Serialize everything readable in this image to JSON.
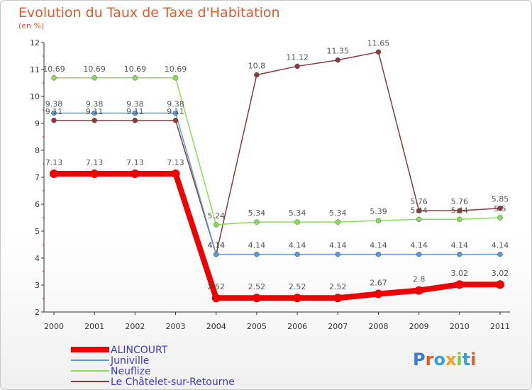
{
  "chart_data": {
    "type": "line",
    "title": "Evolution du Taux de Taxe d'Habitation",
    "subtitle": "(en %)",
    "x": [
      "2000",
      "2001",
      "2002",
      "2003",
      "2004",
      "2005",
      "2006",
      "2007",
      "2008",
      "2009",
      "2010",
      "2011"
    ],
    "ylim": [
      2,
      12
    ],
    "yticks": [
      2,
      3,
      4,
      5,
      6,
      7,
      8,
      9,
      10,
      11,
      12
    ],
    "grid": false,
    "legend_position": "bottom-left",
    "series": [
      {
        "name": "ALINCOURT",
        "color": "#ee0000",
        "values": [
          7.13,
          7.13,
          7.13,
          7.13,
          2.52,
          2.52,
          2.52,
          2.52,
          2.67,
          2.8,
          3.02,
          3.02
        ],
        "labels": [
          "7.13",
          "7.13",
          "7.13",
          "7.13",
          "2.52",
          "2.52",
          "2.52",
          "2.52",
          "2.67",
          "2.8",
          "3.02",
          "3.02"
        ]
      },
      {
        "name": "Juniville",
        "color": "#5b9bd5",
        "values": [
          9.38,
          9.38,
          9.38,
          9.38,
          4.14,
          4.14,
          4.14,
          4.14,
          4.14,
          4.14,
          4.14,
          4.14
        ],
        "labels": [
          "9.38",
          "9.38",
          "9.38",
          "9.38",
          "4.14",
          "4.14",
          "4.14",
          "4.14",
          "4.14",
          "4.14",
          "4.14",
          "4.14"
        ]
      },
      {
        "name": "Neuflize",
        "color": "#88dd55",
        "values": [
          10.69,
          10.69,
          10.69,
          10.69,
          5.24,
          5.34,
          5.34,
          5.34,
          5.39,
          5.44,
          5.44,
          5.5
        ],
        "labels": [
          "10.69",
          "10.69",
          "10.69",
          "10.69",
          "5.24",
          "5.34",
          "5.34",
          "5.34",
          "5.39",
          "5.44",
          "5.44",
          "5.5"
        ]
      },
      {
        "name": "Le Châtelet-sur-Retourne",
        "color": "#8b3a3a",
        "values": [
          9.11,
          9.11,
          9.11,
          9.11,
          4.14,
          10.8,
          11.12,
          11.35,
          11.65,
          5.76,
          5.76,
          5.85
        ],
        "labels": [
          "9.11",
          "9.11",
          "9.11",
          "9.11",
          "4.14",
          "10.8",
          "11.12",
          "11.35",
          "11.65",
          "5.76",
          "5.76",
          "5.85"
        ]
      }
    ]
  },
  "logo": {
    "text": "Proxiti"
  }
}
